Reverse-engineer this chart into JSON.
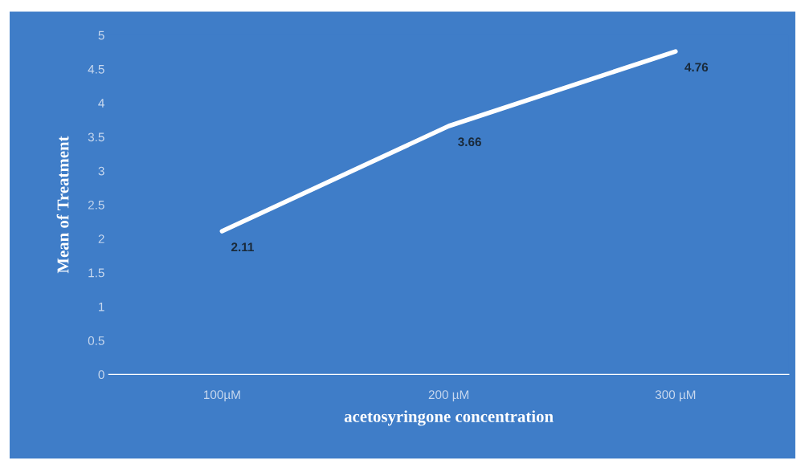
{
  "chart_data": {
    "type": "line",
    "xlabel": "acetosyringone concentration",
    "ylabel": "Mean of Treatment",
    "categories": [
      "100µM",
      "200 µM",
      "300 µM"
    ],
    "series": [
      {
        "color": "#ffffff",
        "values": [
          2.11,
          3.66,
          4.76
        ]
      }
    ],
    "ylim": [
      0,
      5
    ],
    "yticks": [
      0,
      0.5,
      1,
      1.5,
      2,
      2.5,
      3,
      3.5,
      4,
      4.5,
      5
    ],
    "data_labels": true,
    "grid": false,
    "legend": false,
    "marker": "none",
    "line_style": "solid"
  }
}
